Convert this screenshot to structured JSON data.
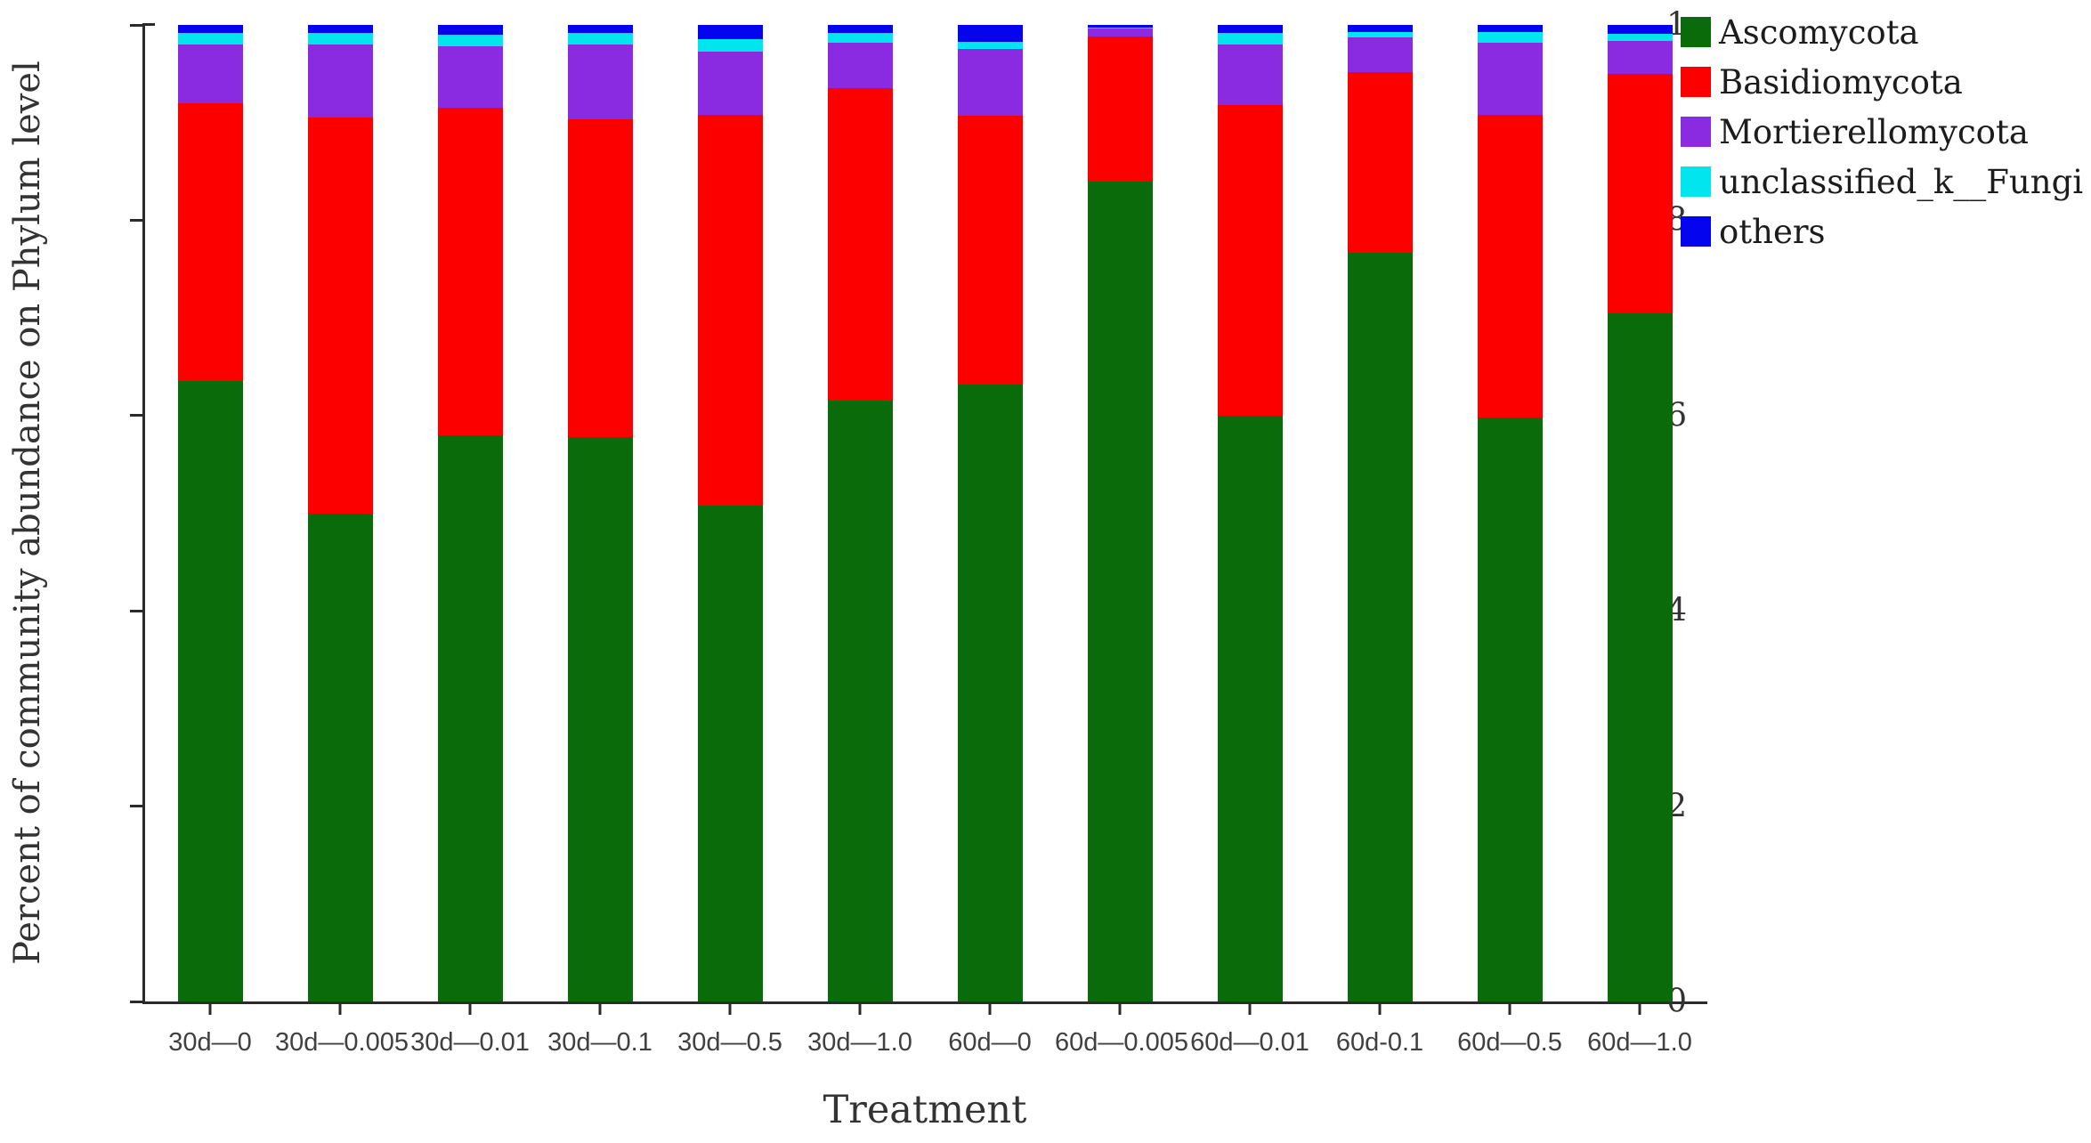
{
  "figure": {
    "background": "#ffffff",
    "axis_color": "#2b2b2b",
    "y_axis": {
      "title": "Percent of community abundance on Phylum level",
      "tick_labels": [
        "0",
        "0.2",
        "0.4",
        "0.6",
        "0.8",
        "1"
      ],
      "tick_values": [
        0,
        0.2,
        0.4,
        0.6,
        0.8,
        1
      ]
    },
    "x_axis": {
      "title": "Treatment"
    }
  },
  "legend": {
    "items": [
      {
        "label": "Ascomycota",
        "color": "#0a6b0a"
      },
      {
        "label": "Basidiomycota",
        "color": "#fc0000"
      },
      {
        "label": "Mortierellomycota",
        "color": "#8a2be2"
      },
      {
        "label": "unclassified_k__Fungi",
        "color": "#00e5ee"
      },
      {
        "label": "others",
        "color": "#0404ee"
      }
    ]
  },
  "chart_data": {
    "type": "bar",
    "stacked": true,
    "title": "",
    "xlabel": "Treatment",
    "ylabel": "Percent of community abundance on Phylum level",
    "ylim": [
      0,
      1
    ],
    "grid": false,
    "legend_position": "top-right",
    "categories": [
      "30d—0",
      "30d—0.005",
      "30d—0.01",
      "30d—0.1",
      "30d—0.5",
      "30d—1.0",
      "60d—0",
      "60d—0.005",
      "60d—0.01",
      "60d-0.1",
      "60d—0.5",
      "60d—1.0"
    ],
    "series": [
      {
        "name": "Ascomycota",
        "color": "#0a6b0a",
        "values": [
          0.635,
          0.5,
          0.58,
          0.578,
          0.508,
          0.615,
          0.632,
          0.84,
          0.6,
          0.767,
          0.598,
          0.705
        ]
      },
      {
        "name": "Basidiomycota",
        "color": "#fc0000",
        "values": [
          0.285,
          0.405,
          0.335,
          0.325,
          0.4,
          0.32,
          0.275,
          0.148,
          0.318,
          0.185,
          0.31,
          0.245
        ]
      },
      {
        "name": "Mortierellomycota",
        "color": "#8a2be2",
        "values": [
          0.06,
          0.075,
          0.063,
          0.077,
          0.065,
          0.047,
          0.068,
          0.008,
          0.062,
          0.035,
          0.074,
          0.034
        ]
      },
      {
        "name": "unclassified_k__Fungi",
        "color": "#00e5ee",
        "values": [
          0.012,
          0.012,
          0.012,
          0.012,
          0.012,
          0.01,
          0.008,
          0.001,
          0.012,
          0.006,
          0.011,
          0.007
        ]
      },
      {
        "name": "others",
        "color": "#0404ee",
        "values": [
          0.008,
          0.008,
          0.01,
          0.008,
          0.015,
          0.008,
          0.017,
          0.003,
          0.008,
          0.007,
          0.007,
          0.009
        ]
      }
    ]
  }
}
